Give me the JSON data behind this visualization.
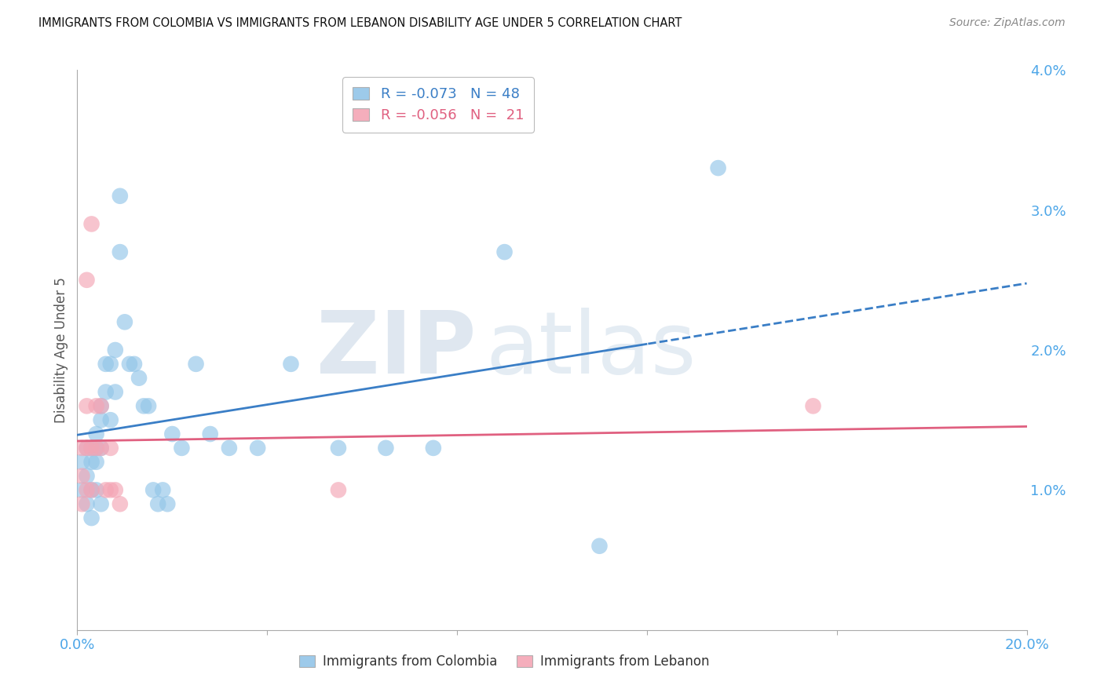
{
  "title": "IMMIGRANTS FROM COLOMBIA VS IMMIGRANTS FROM LEBANON DISABILITY AGE UNDER 5 CORRELATION CHART",
  "source": "Source: ZipAtlas.com",
  "ylabel": "Disability Age Under 5",
  "xlim": [
    0.0,
    0.2
  ],
  "ylim": [
    -0.005,
    0.045
  ],
  "plot_ylim": [
    0.0,
    0.04
  ],
  "yticks_right": [
    0.01,
    0.02,
    0.03,
    0.04
  ],
  "yticklabels_right": [
    "1.0%",
    "2.0%",
    "3.0%",
    "4.0%"
  ],
  "colombia_color": "#92C5E8",
  "lebanon_color": "#F4A5B5",
  "colombia_trend_color": "#3A7EC6",
  "lebanon_trend_color": "#E06080",
  "colombia_R": -0.073,
  "colombia_N": 48,
  "lebanon_R": -0.056,
  "lebanon_N": 21,
  "colombia_x": [
    0.001,
    0.001,
    0.002,
    0.002,
    0.002,
    0.003,
    0.003,
    0.003,
    0.003,
    0.004,
    0.004,
    0.004,
    0.004,
    0.005,
    0.005,
    0.005,
    0.005,
    0.006,
    0.006,
    0.007,
    0.007,
    0.008,
    0.008,
    0.009,
    0.009,
    0.01,
    0.011,
    0.012,
    0.013,
    0.014,
    0.015,
    0.016,
    0.017,
    0.018,
    0.019,
    0.02,
    0.022,
    0.025,
    0.028,
    0.032,
    0.038,
    0.045,
    0.055,
    0.065,
    0.075,
    0.09,
    0.11,
    0.135
  ],
  "colombia_y": [
    0.012,
    0.01,
    0.013,
    0.011,
    0.009,
    0.013,
    0.012,
    0.01,
    0.008,
    0.014,
    0.013,
    0.012,
    0.01,
    0.016,
    0.015,
    0.013,
    0.009,
    0.019,
    0.017,
    0.019,
    0.015,
    0.02,
    0.017,
    0.031,
    0.027,
    0.022,
    0.019,
    0.019,
    0.018,
    0.016,
    0.016,
    0.01,
    0.009,
    0.01,
    0.009,
    0.014,
    0.013,
    0.019,
    0.014,
    0.013,
    0.013,
    0.019,
    0.013,
    0.013,
    0.013,
    0.027,
    0.006,
    0.033
  ],
  "lebanon_x": [
    0.001,
    0.001,
    0.001,
    0.002,
    0.002,
    0.002,
    0.002,
    0.003,
    0.003,
    0.003,
    0.004,
    0.004,
    0.005,
    0.005,
    0.006,
    0.007,
    0.007,
    0.008,
    0.009,
    0.055,
    0.155
  ],
  "lebanon_y": [
    0.013,
    0.011,
    0.009,
    0.025,
    0.016,
    0.013,
    0.01,
    0.029,
    0.013,
    0.01,
    0.016,
    0.013,
    0.016,
    0.013,
    0.01,
    0.013,
    0.01,
    0.01,
    0.009,
    0.01,
    0.016
  ],
  "trend_x_start": 0.0,
  "trend_x_end": 0.2,
  "trend_split": 0.12,
  "background_color": "#FFFFFF",
  "grid_color": "#CCCCCC",
  "title_color": "#111111",
  "axis_label_color": "#555555",
  "tick_label_color": "#4DA6E8",
  "watermark_zip_color": "#C8D8E8",
  "watermark_atlas_color": "#C8D8E8"
}
